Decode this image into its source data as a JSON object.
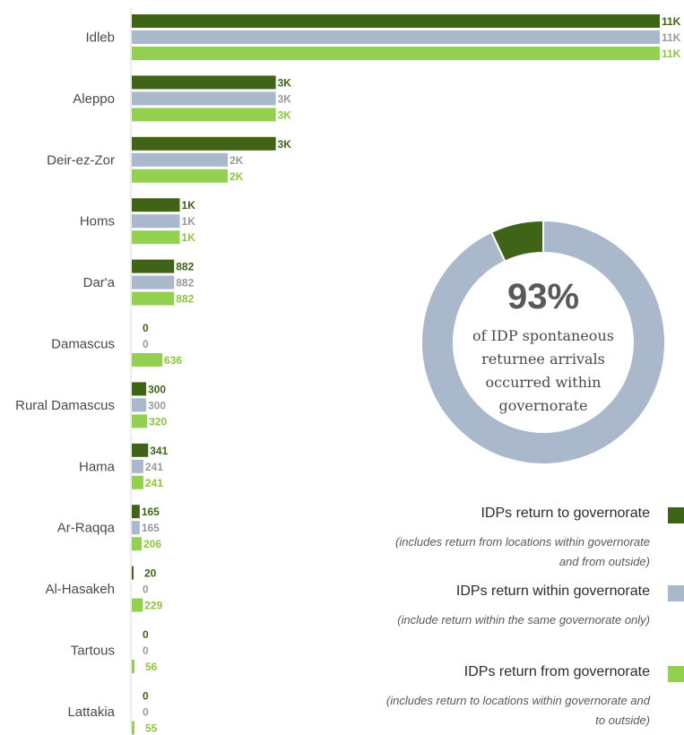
{
  "chart_data": {
    "type": "bar",
    "orientation": "horizontal",
    "categories": [
      "Idleb",
      "Aleppo",
      "Deir-ez-Zor",
      "Homs",
      "Dar'a",
      "Damascus",
      "Rural Damascus",
      "Hama",
      "Ar-Raqqa",
      "Al-Hasakeh",
      "Tartous",
      "Lattakia"
    ],
    "series": [
      {
        "name": "IDPs return to governorate",
        "color": "#3f6418",
        "values": [
          11000,
          3000,
          3000,
          1000,
          882,
          0,
          300,
          341,
          165,
          20,
          0,
          0
        ],
        "labels": [
          "11K",
          "3K",
          "3K",
          "1K",
          "882",
          "0",
          "300",
          "341",
          "165",
          "20",
          "0",
          "0"
        ]
      },
      {
        "name": "IDPs return within governorate",
        "color": "#aab8cb",
        "values": [
          11000,
          3000,
          2000,
          1000,
          882,
          0,
          300,
          241,
          165,
          0,
          0,
          0
        ],
        "labels": [
          "11K",
          "3K",
          "2K",
          "1K",
          "882",
          "0",
          "300",
          "241",
          "165",
          "0",
          "0",
          "0"
        ]
      },
      {
        "name": "IDPs return from governorate",
        "color": "#94d04f",
        "values": [
          11000,
          3000,
          2000,
          1000,
          882,
          636,
          320,
          241,
          206,
          229,
          56,
          55
        ],
        "labels": [
          "11K",
          "3K",
          "2K",
          "1K",
          "882",
          "636",
          "320",
          "241",
          "206",
          "229",
          "56",
          "55"
        ]
      }
    ],
    "label_colors": [
      "#3f6418",
      "#9a9a9a",
      "#8cc63f"
    ],
    "donut": {
      "percent": 93,
      "percent_label": "93%",
      "lines": [
        "of IDP spontaneous",
        "returnee arrivals",
        "occurred within",
        "governorate"
      ],
      "colors": [
        "#aab8cb",
        "#3f6418"
      ]
    }
  },
  "legend": [
    {
      "title": "IDPs return to governorate",
      "color": "#3f6418",
      "note_lines": [
        "(includes return from locations within governorate",
        "and from outside)"
      ]
    },
    {
      "title": "IDPs return within governorate",
      "color": "#aab8cb",
      "note_lines": [
        "(include return within the same governorate only)"
      ]
    },
    {
      "title": "IDPs return from governorate",
      "color": "#94d04f",
      "note_lines": [
        "(includes return to locations within governorate and",
        "to outside)"
      ]
    }
  ]
}
